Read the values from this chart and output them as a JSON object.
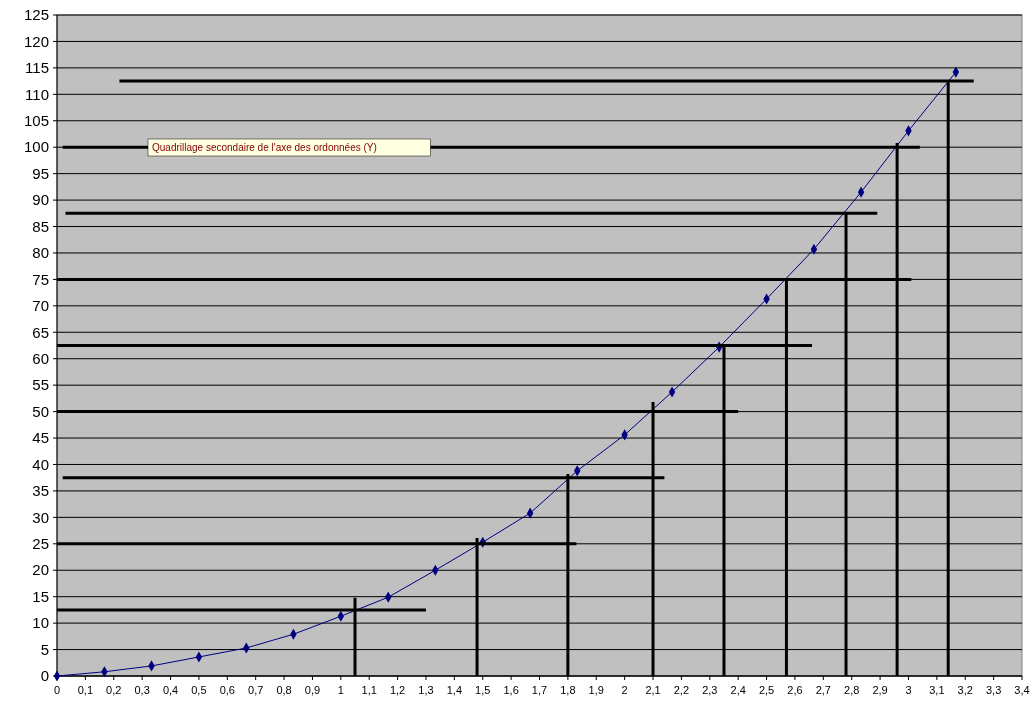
{
  "chart_data": {
    "type": "line",
    "xlim": [
      0,
      3.4
    ],
    "ylim": [
      0,
      125
    ],
    "xticks": [
      0,
      {
        "value": 0.1,
        "label": "0,1"
      },
      {
        "value": 0.2,
        "label": "0,2"
      },
      {
        "value": 0.3,
        "label": "0,3"
      },
      {
        "value": 0.4,
        "label": "0,4"
      },
      {
        "value": 0.5,
        "label": "0,5"
      },
      {
        "value": 0.6,
        "label": "0,6"
      },
      {
        "value": 0.7,
        "label": "0,7"
      },
      {
        "value": 0.8,
        "label": "0,8"
      },
      {
        "value": 0.9,
        "label": "0,9"
      },
      1,
      {
        "value": 1.1,
        "label": "1,1"
      },
      {
        "value": 1.2,
        "label": "1,2"
      },
      {
        "value": 1.3,
        "label": "1,3"
      },
      {
        "value": 1.4,
        "label": "1,4"
      },
      {
        "value": 1.5,
        "label": "1,5"
      },
      {
        "value": 1.6,
        "label": "1,6"
      },
      {
        "value": 1.7,
        "label": "1,7"
      },
      {
        "value": 1.8,
        "label": "1,8"
      },
      {
        "value": 1.9,
        "label": "1,9"
      },
      2,
      {
        "value": 2.1,
        "label": "2,1"
      },
      {
        "value": 2.2,
        "label": "2,2"
      },
      {
        "value": 2.3,
        "label": "2,3"
      },
      {
        "value": 2.4,
        "label": "2,4"
      },
      {
        "value": 2.5,
        "label": "2,5"
      },
      {
        "value": 2.6,
        "label": "2,6"
      },
      {
        "value": 2.7,
        "label": "2,7"
      },
      {
        "value": 2.8,
        "label": "2,8"
      },
      {
        "value": 2.9,
        "label": "2,9"
      },
      3,
      {
        "value": 3.1,
        "label": "3,1"
      },
      {
        "value": 3.2,
        "label": "3,2"
      },
      {
        "value": 3.3,
        "label": "3,3"
      },
      {
        "value": 3.4,
        "label": "3,4"
      }
    ],
    "yticks": [
      0,
      5,
      10,
      15,
      20,
      25,
      30,
      35,
      40,
      45,
      50,
      55,
      60,
      65,
      70,
      75,
      80,
      85,
      90,
      95,
      100,
      105,
      110,
      115,
      120,
      125
    ],
    "grid": "y",
    "annotations": [
      "Quadrillage secondaire de l'axe des ordonnées (Y)"
    ],
    "series": [
      {
        "color": "#000080",
        "marker": "diamond",
        "x": [
          0,
          0.167,
          0.333,
          0.5,
          0.667,
          0.833,
          1,
          1.167,
          1.333,
          1.5,
          1.667,
          1.833,
          2,
          2.167,
          2.333,
          2.5,
          2.667,
          2.833,
          3,
          3.167
        ],
        "values": [
          0,
          0.8,
          1.9,
          3.6,
          5.3,
          7.9,
          11.3,
          14.9,
          20,
          25.3,
          30.8,
          38.8,
          45.6,
          53.7,
          62.2,
          71.3,
          80.7,
          91.5,
          103.1,
          114.2
        ]
      },
      {
        "color": "#000000",
        "marker": "none",
        "x": [
          0,
          1.3
        ],
        "values": [
          12.5,
          12.5
        ]
      },
      {
        "color": "#000000",
        "marker": "none",
        "x": [
          0,
          1.83
        ],
        "values": [
          25,
          25
        ]
      },
      {
        "color": "#000000",
        "marker": "none",
        "x": [
          0.02,
          2.14
        ],
        "values": [
          37.5,
          37.5
        ]
      },
      {
        "color": "#000000",
        "marker": "none",
        "x": [
          0,
          2.4
        ],
        "values": [
          50,
          50
        ]
      },
      {
        "color": "#000000",
        "marker": "none",
        "x": [
          0,
          2.66
        ],
        "values": [
          62.5,
          62.5
        ]
      },
      {
        "color": "#000000",
        "marker": "none",
        "x": [
          0,
          3.01
        ],
        "values": [
          75,
          75
        ]
      },
      {
        "color": "#000000",
        "marker": "none",
        "x": [
          0.03,
          2.89
        ],
        "values": [
          87.5,
          87.5
        ]
      },
      {
        "color": "#000000",
        "marker": "none",
        "x": [
          0.02,
          3.04
        ],
        "values": [
          100,
          100
        ]
      },
      {
        "color": "#000000",
        "marker": "none",
        "x": [
          0.22,
          3.23
        ],
        "values": [
          112.5,
          112.5
        ]
      },
      {
        "color": "#000000",
        "marker": "none",
        "x": [
          1.05,
          1.05
        ],
        "values": [
          0,
          14.8
        ]
      },
      {
        "color": "#000000",
        "marker": "none",
        "x": [
          1.48,
          1.48
        ],
        "values": [
          0,
          26.1
        ]
      },
      {
        "color": "#000000",
        "marker": "none",
        "x": [
          1.8,
          1.8
        ],
        "values": [
          0,
          38.2
        ]
      },
      {
        "color": "#000000",
        "marker": "none",
        "x": [
          2.1,
          2.1
        ],
        "values": [
          0,
          51.8
        ]
      },
      {
        "color": "#000000",
        "marker": "none",
        "x": [
          2.35,
          2.35
        ],
        "values": [
          0,
          62.8
        ]
      },
      {
        "color": "#000000",
        "marker": "none",
        "x": [
          2.57,
          2.57
        ],
        "values": [
          0,
          74.9
        ]
      },
      {
        "color": "#000000",
        "marker": "none",
        "x": [
          2.78,
          2.78
        ],
        "values": [
          0,
          87.4
        ]
      },
      {
        "color": "#000000",
        "marker": "none",
        "x": [
          2.96,
          2.96
        ],
        "values": [
          0,
          100.8
        ]
      },
      {
        "color": "#000000",
        "marker": "none",
        "x": [
          3.14,
          3.14
        ],
        "values": [
          0,
          112.3
        ]
      }
    ]
  }
}
